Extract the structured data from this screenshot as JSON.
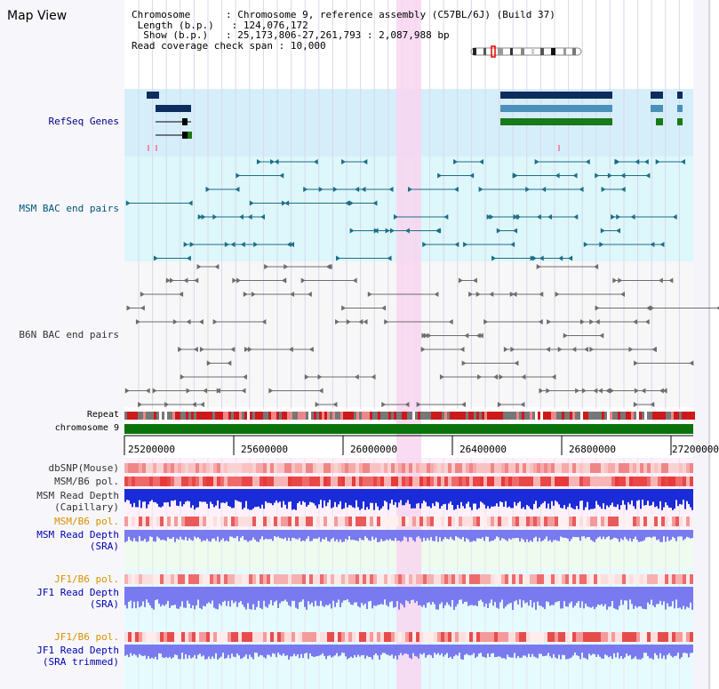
{
  "title": "Map View",
  "info": {
    "chromosome_label": "Chromosome",
    "chromosome_value": "Chromosome 9, reference assembly (C57BL/6J) (Build 37)",
    "length_label": "Length (b.p.)",
    "length_value": "124,076,172",
    "show_label": "Show (b.p.)",
    "show_value": "25,173,806-27,261,793 : 2,087,988 bp",
    "coverage_label": "Read coverage check span",
    "coverage_value": "10,000"
  },
  "tracks": {
    "refseq": "RefSeq Genes",
    "msm_bac": "MSM BAC end pairs",
    "b6n_bac": "B6N BAC end pairs",
    "repeat": "Repeat",
    "chromosome": "chromosome 9",
    "dbsnp": "dbSNP(Mouse)",
    "msm_b6_pol": "MSM/B6 pol.",
    "msm_read_depth_cap_1": "MSM Read Depth",
    "msm_read_depth_cap_2": "(Capillary)",
    "msm_b6_pol_2": "MSM/B6 pol.",
    "msm_read_depth_sra_1": "MSM Read Depth",
    "msm_read_depth_sra_2": "(SRA)",
    "jf1_b6_pol": "JF1/B6 pol.",
    "jf1_read_depth_sra_1": "JF1 Read Depth",
    "jf1_read_depth_sra_2": "(SRA)",
    "jf1_b6_pol_2": "JF1/B6 pol.",
    "jf1_read_depth_trim_1": "JF1 Read Depth",
    "jf1_read_depth_trim_2": "(SRA trimmed)"
  },
  "axis": {
    "ticks": [
      "25200000",
      "25600000",
      "26000000",
      "26400000",
      "26800000",
      "27200000"
    ]
  },
  "colors": {
    "refseq_dark": "#0d2d5e",
    "refseq_mid": "#4a90b8",
    "refseq_green": "#1a7a1a",
    "msm_bac": "#1d6e86",
    "b6n_bac": "#6d6d6d",
    "highlight": "#f8d6f0",
    "chromosome_bar": "#0b730b",
    "depth_capillary": "#1a2bd8",
    "depth_sra": "#7a7af0"
  }
}
